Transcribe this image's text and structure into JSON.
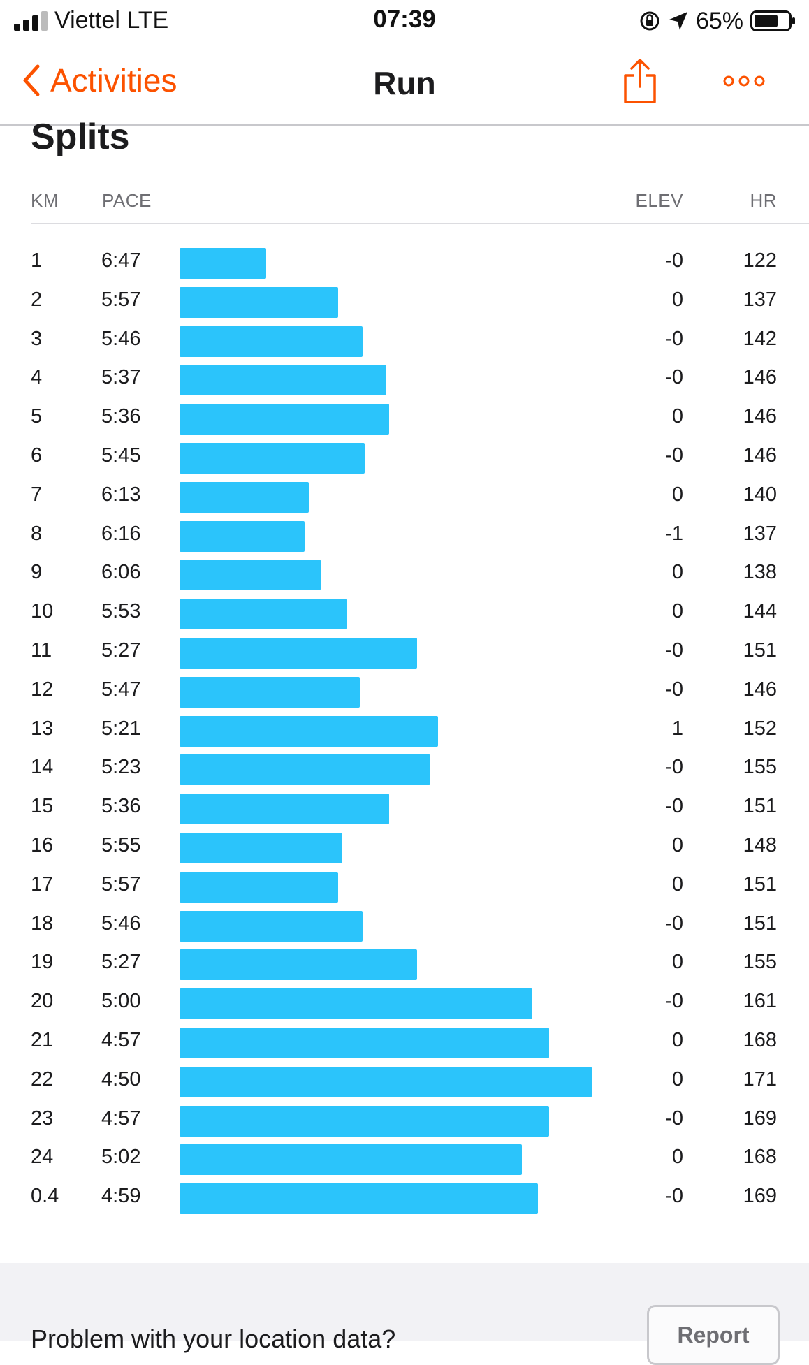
{
  "status_bar": {
    "carrier": "Viettel  LTE",
    "time": "07:39",
    "battery": "65%"
  },
  "nav": {
    "back_label": "Activities",
    "title": "Run",
    "accent": "#fc5200"
  },
  "splits": {
    "title": "Splits",
    "headers": {
      "km": "KM",
      "pace": "PACE",
      "elev": "ELEV",
      "hr": "HR"
    },
    "bar_color": "#2bc4fb",
    "rows": [
      {
        "km": "1",
        "pace": "6:47",
        "elev": "-0",
        "hr": "122"
      },
      {
        "km": "2",
        "pace": "5:57",
        "elev": "0",
        "hr": "137"
      },
      {
        "km": "3",
        "pace": "5:46",
        "elev": "-0",
        "hr": "142"
      },
      {
        "km": "4",
        "pace": "5:37",
        "elev": "-0",
        "hr": "146"
      },
      {
        "km": "5",
        "pace": "5:36",
        "elev": "0",
        "hr": "146"
      },
      {
        "km": "6",
        "pace": "5:45",
        "elev": "-0",
        "hr": "146"
      },
      {
        "km": "7",
        "pace": "6:13",
        "elev": "0",
        "hr": "140"
      },
      {
        "km": "8",
        "pace": "6:16",
        "elev": "-1",
        "hr": "137"
      },
      {
        "km": "9",
        "pace": "6:06",
        "elev": "0",
        "hr": "138"
      },
      {
        "km": "10",
        "pace": "5:53",
        "elev": "0",
        "hr": "144"
      },
      {
        "km": "11",
        "pace": "5:27",
        "elev": "-0",
        "hr": "151"
      },
      {
        "km": "12",
        "pace": "5:47",
        "elev": "-0",
        "hr": "146"
      },
      {
        "km": "13",
        "pace": "5:21",
        "elev": "1",
        "hr": "152"
      },
      {
        "km": "14",
        "pace": "5:23",
        "elev": "-0",
        "hr": "155"
      },
      {
        "km": "15",
        "pace": "5:36",
        "elev": "-0",
        "hr": "151"
      },
      {
        "km": "16",
        "pace": "5:55",
        "elev": "0",
        "hr": "148"
      },
      {
        "km": "17",
        "pace": "5:57",
        "elev": "0",
        "hr": "151"
      },
      {
        "km": "18",
        "pace": "5:46",
        "elev": "-0",
        "hr": "151"
      },
      {
        "km": "19",
        "pace": "5:27",
        "elev": "0",
        "hr": "155"
      },
      {
        "km": "20",
        "pace": "5:00",
        "elev": "-0",
        "hr": "161"
      },
      {
        "km": "21",
        "pace": "4:57",
        "elev": "0",
        "hr": "168"
      },
      {
        "km": "22",
        "pace": "4:50",
        "elev": "0",
        "hr": "171"
      },
      {
        "km": "23",
        "pace": "4:57",
        "elev": "-0",
        "hr": "169"
      },
      {
        "km": "24",
        "pace": "5:02",
        "elev": "0",
        "hr": "168"
      },
      {
        "km": "0.4",
        "pace": "4:59",
        "elev": "-0",
        "hr": "169"
      }
    ]
  },
  "footer": {
    "problem_text": "Problem with your location data?",
    "report_label": "Report"
  }
}
